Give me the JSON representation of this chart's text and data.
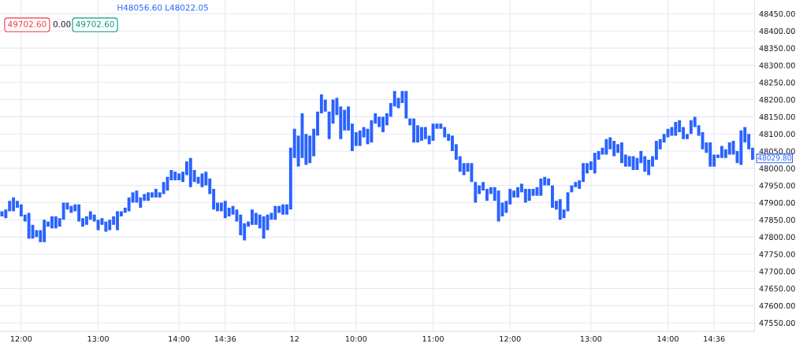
{
  "chart_data": {
    "type": "bar",
    "color": "#2962ff",
    "base": [
      47860,
      47855,
      47875,
      47875,
      47885,
      47860,
      47845,
      47795,
      47795,
      47800,
      47785,
      47785,
      47830,
      47825,
      47825,
      47830,
      47850,
      47880,
      47870,
      47875,
      47845,
      47830,
      47835,
      47850,
      47845,
      47820,
      47835,
      47815,
      47820,
      47835,
      47820,
      47860,
      47870,
      47875,
      47900,
      47900,
      47885,
      47905,
      47905,
      47915,
      47915,
      47915,
      47925,
      47935,
      47965,
      47965,
      47965,
      47960,
      47980,
      47945,
      47960,
      47955,
      47945,
      47950,
      47925,
      47880,
      47875,
      47875,
      47855,
      47860,
      47865,
      47845,
      47805,
      47790,
      47830,
      47835,
      47835,
      47825,
      47795,
      47820,
      47850,
      47850,
      47870,
      47865,
      47865,
      47880,
      48030,
      48005,
      48030,
      48010,
      48015,
      48035,
      48095,
      48160,
      48165,
      48085,
      48130,
      48155,
      48085,
      48110,
      48110,
      48050,
      48065,
      48065,
      48090,
      48070,
      48075,
      48130,
      48120,
      48105,
      48125,
      48150,
      48180,
      48175,
      48190,
      48145,
      48125,
      48075,
      48075,
      48080,
      48085,
      48070,
      48080,
      48115,
      48115,
      48090,
      48080,
      48050,
      48025,
      47990,
      47980,
      47990,
      47960,
      47900,
      47925,
      47935,
      47905,
      47925,
      47905,
      47845,
      47860,
      47870,
      47895,
      47915,
      47915,
      47930,
      47900,
      47905,
      47920,
      47920,
      47920,
      47950,
      47950,
      47885,
      47880,
      47850,
      47855,
      47875,
      47930,
      47945,
      47940,
      47960,
      47985,
      47995,
      47985,
      48025,
      48040,
      48040,
      48055,
      48035,
      48045,
      48015,
      48005,
      48005,
      47995,
      47995,
      48015,
      47990,
      47980,
      48005,
      48025,
      48055,
      48075,
      48090,
      48095,
      48095,
      48105,
      48085,
      48085,
      48100,
      48120,
      48095,
      48055,
      48045,
      48005,
      48005,
      48030,
      48030,
      48030,
      48040,
      48040,
      48015,
      48010,
      48075,
      48055,
      48025
    ],
    "values": [
      15,
      25,
      30,
      40,
      20,
      35,
      20,
      75,
      40,
      20,
      35,
      65,
      15,
      35,
      35,
      25,
      50,
      20,
      20,
      20,
      50,
      25,
      25,
      25,
      20,
      30,
      20,
      30,
      30,
      25,
      55,
      15,
      15,
      40,
      30,
      35,
      30,
      20,
      25,
      15,
      25,
      15,
      35,
      40,
      30,
      25,
      20,
      30,
      40,
      85,
      35,
      20,
      40,
      40,
      45,
      60,
      25,
      25,
      50,
      25,
      25,
      35,
      60,
      50,
      15,
      45,
      35,
      40,
      65,
      45,
      20,
      40,
      20,
      30,
      30,
      180,
      85,
      90,
      130,
      90,
      80,
      80,
      70,
      55,
      35,
      80,
      70,
      50,
      95,
      60,
      70,
      80,
      40,
      45,
      30,
      45,
      65,
      30,
      30,
      45,
      35,
      40,
      45,
      30,
      35,
      80,
      20,
      70,
      50,
      40,
      35,
      25,
      50,
      15,
      15,
      30,
      20,
      45,
      45,
      45,
      35,
      25,
      55,
      60,
      25,
      25,
      35,
      20,
      40,
      90,
      40,
      35,
      45,
      20,
      30,
      25,
      40,
      35,
      20,
      25,
      50,
      25,
      20,
      65,
      25,
      60,
      25,
      55,
      20,
      15,
      25,
      55,
      30,
      25,
      60,
      25,
      20,
      45,
      35,
      45,
      25,
      60,
      35,
      30,
      40,
      35,
      35,
      45,
      45,
      30,
      55,
      30,
      25,
      25,
      25,
      40,
      35,
      35,
      15,
      40,
      30,
      30,
      50,
      30,
      70,
      35,
      10,
      35,
      25,
      35,
      40,
      35,
      100,
      45,
      45,
      35
    ],
    "categories": [
      null,
      null,
      null,
      null,
      null,
      "12:00",
      null,
      null,
      null,
      null,
      null,
      null,
      null,
      null,
      null,
      null,
      null,
      null,
      null,
      null,
      null,
      null,
      null,
      null,
      null,
      "13:00",
      null,
      null,
      null,
      null,
      null,
      null,
      null,
      null,
      null,
      null,
      null,
      null,
      null,
      null,
      null,
      null,
      null,
      null,
      null,
      null,
      "14:00",
      null,
      null,
      null,
      null,
      null,
      null,
      null,
      null,
      null,
      null,
      null,
      "14:36",
      null,
      null,
      null,
      null,
      null,
      null,
      null,
      null,
      null,
      null,
      null,
      null,
      null,
      null,
      null,
      null,
      null,
      "12",
      null,
      null,
      null,
      null,
      null,
      null,
      null,
      null,
      null,
      null,
      null,
      null,
      null,
      null,
      null,
      "10:00",
      null,
      null,
      null,
      null,
      null,
      null,
      null,
      null,
      null,
      null,
      null,
      null,
      null,
      null,
      null,
      null,
      null,
      null,
      null,
      "11:00",
      null,
      null,
      null,
      null,
      null,
      null,
      null,
      null,
      null,
      null,
      null,
      null,
      null,
      null,
      null,
      null,
      null,
      null,
      null,
      "12:00",
      null,
      null,
      null,
      null,
      null,
      null,
      null,
      null,
      null,
      null,
      null,
      null,
      null,
      null,
      null,
      null,
      null,
      null,
      null,
      null,
      "13:00",
      null,
      null,
      null,
      null,
      null,
      null,
      null,
      null,
      null,
      null,
      null,
      null,
      null,
      null,
      null,
      null,
      null,
      null,
      null,
      "14:00",
      null,
      null,
      null,
      null,
      null,
      null,
      null,
      null,
      null,
      null,
      null,
      "14:36",
      null,
      null,
      null,
      null,
      null,
      null,
      null,
      null,
      null,
      null
    ],
    "ylim": [
      47525,
      48490
    ],
    "yticks": [
      {
        "value": 47550,
        "label": "47550.00"
      },
      {
        "value": 47600,
        "label": "47600.00"
      },
      {
        "value": 47650,
        "label": "47650.00"
      },
      {
        "value": 47700,
        "label": "47700.00"
      },
      {
        "value": 47750,
        "label": "47750.00"
      },
      {
        "value": 47800,
        "label": "47800.00"
      },
      {
        "value": 47850,
        "label": "47850.00"
      },
      {
        "value": 47900,
        "label": "47900.00"
      },
      {
        "value": 47950,
        "label": "47950.00"
      },
      {
        "value": 48000,
        "label": "48000.00"
      },
      {
        "value": 48050,
        "label": "48050.00"
      },
      {
        "value": 48100,
        "label": "48100.00"
      },
      {
        "value": 48150,
        "label": "48150.00"
      },
      {
        "value": 48200,
        "label": "48200.00"
      },
      {
        "value": 48250,
        "label": "48250.00"
      },
      {
        "value": 48300,
        "label": "48300.00"
      },
      {
        "value": 48350,
        "label": "48350.00"
      },
      {
        "value": 48400,
        "label": "48400.00"
      },
      {
        "value": 48450,
        "label": "48450.00"
      }
    ],
    "grid": true,
    "annotations": [
      "H48056.60 L48022.05",
      "49702.60",
      "0.00",
      "49702.60",
      "48029.80"
    ]
  }
}
